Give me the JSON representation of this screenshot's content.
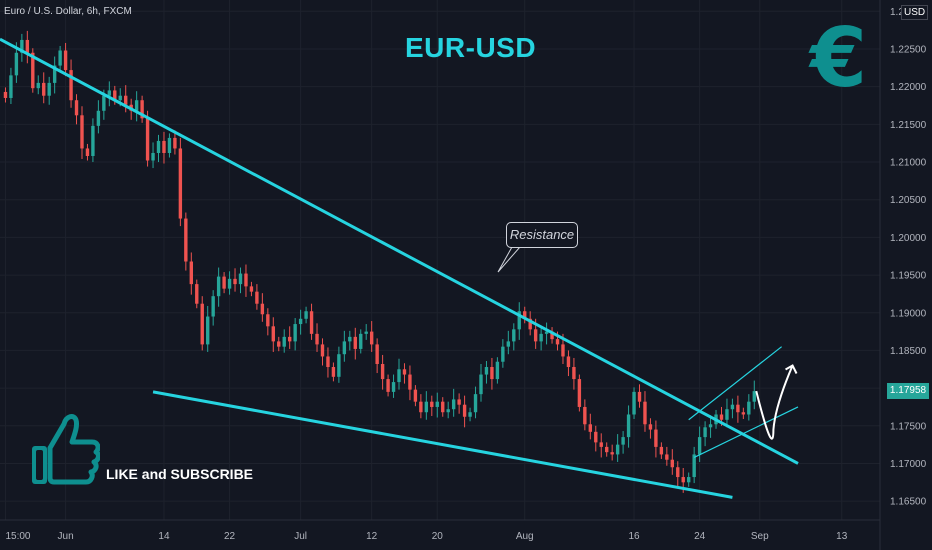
{
  "symbol_label": "Euro / U.S. Dollar, 6h, FXCM",
  "annotations": {
    "title": "EUR-USD",
    "resistance_label": "Resistance",
    "call_to_action": "LIKE and SUBSCRIBE",
    "currency_symbol": "€",
    "thumbs_up_icon": "thumbs-up-icon"
  },
  "axis": {
    "currency": "USD",
    "current_price": "1.17958"
  },
  "colors": {
    "background": "#131722",
    "up_candle": "#26a69a",
    "down_candle": "#ef5350",
    "trendline": "#26d4e0",
    "accent": "#0e8f8f"
  },
  "chart_data": {
    "type": "candlestick",
    "title": "EUR-USD",
    "y_ticks": [
      "1.16500",
      "1.17000",
      "1.17500",
      "1.18000",
      "1.18500",
      "1.19000",
      "1.19500",
      "1.20000",
      "1.20500",
      "1.21000",
      "1.21500",
      "1.22000",
      "1.22500",
      "1.23000"
    ],
    "ylim": [
      1.1625,
      1.2315
    ],
    "x_ticks": [
      {
        "label": "15:00",
        "pos": 0
      },
      {
        "label": "Jun",
        "pos": 11
      },
      {
        "label": "14",
        "pos": 29
      },
      {
        "label": "22",
        "pos": 41
      },
      {
        "label": "Jul",
        "pos": 54
      },
      {
        "label": "12",
        "pos": 67
      },
      {
        "label": "20",
        "pos": 79
      },
      {
        "label": "Aug",
        "pos": 95
      },
      {
        "label": "16",
        "pos": 115
      },
      {
        "label": "24",
        "pos": 127
      },
      {
        "label": "Sep",
        "pos": 138
      },
      {
        "label": "13",
        "pos": 153
      }
    ],
    "x_range": [
      -1,
      160
    ],
    "close": [
      1.2185,
      1.2215,
      1.2245,
      1.2262,
      1.2245,
      1.2198,
      1.2205,
      1.2188,
      1.2205,
      1.2228,
      1.2248,
      1.2222,
      1.2182,
      1.2162,
      1.2118,
      1.2108,
      1.2148,
      1.2168,
      1.2188,
      1.2195,
      1.2182,
      1.2188,
      1.2176,
      1.2168,
      1.2182,
      1.2158,
      1.2102,
      1.2112,
      1.2128,
      1.2112,
      1.2132,
      1.2118,
      1.2025,
      1.1968,
      1.1938,
      1.1912,
      1.1858,
      1.1895,
      1.1922,
      1.1948,
      1.1932,
      1.1945,
      1.1938,
      1.1952,
      1.1935,
      1.1928,
      1.1912,
      1.1898,
      1.1882,
      1.1862,
      1.1855,
      1.1868,
      1.1862,
      1.1885,
      1.1892,
      1.1902,
      1.1872,
      1.1858,
      1.1842,
      1.1828,
      1.1815,
      1.1845,
      1.1862,
      1.1868,
      1.1852,
      1.1872,
      1.1875,
      1.1858,
      1.1832,
      1.1812,
      1.1795,
      1.1808,
      1.1825,
      1.1818,
      1.1798,
      1.1782,
      1.1768,
      1.1782,
      1.1775,
      1.1782,
      1.1768,
      1.1772,
      1.1785,
      1.1778,
      1.1762,
      1.1768,
      1.1792,
      1.1818,
      1.1828,
      1.1812,
      1.1835,
      1.1855,
      1.1862,
      1.1878,
      1.1902,
      1.1892,
      1.1878,
      1.1862,
      1.1872,
      1.1875,
      1.1865,
      1.1858,
      1.1842,
      1.1828,
      1.1812,
      1.1775,
      1.1752,
      1.1742,
      1.1728,
      1.1722,
      1.1715,
      1.1712,
      1.1725,
      1.1735,
      1.1765,
      1.1795,
      1.1782,
      1.1752,
      1.1745,
      1.1722,
      1.1712,
      1.1705,
      1.1695,
      1.1682,
      1.1675,
      1.1682,
      1.1712,
      1.1735,
      1.1748,
      1.1752,
      1.1765,
      1.1758,
      1.1772,
      1.1778,
      1.1768,
      1.1765,
      1.1782,
      1.1796
    ],
    "trendlines": [
      {
        "name": "resistance",
        "points": [
          [
            -1,
            1.2263
          ],
          [
            145,
            1.17
          ]
        ]
      },
      {
        "name": "support",
        "points": [
          [
            27,
            1.1795
          ],
          [
            133,
            1.1655
          ]
        ]
      },
      {
        "name": "channel-upper",
        "points": [
          [
            125,
            1.1758
          ],
          [
            142,
            1.1855
          ]
        ]
      },
      {
        "name": "channel-lower",
        "points": [
          [
            126,
            1.1708
          ],
          [
            145,
            1.1775
          ]
        ]
      }
    ]
  }
}
